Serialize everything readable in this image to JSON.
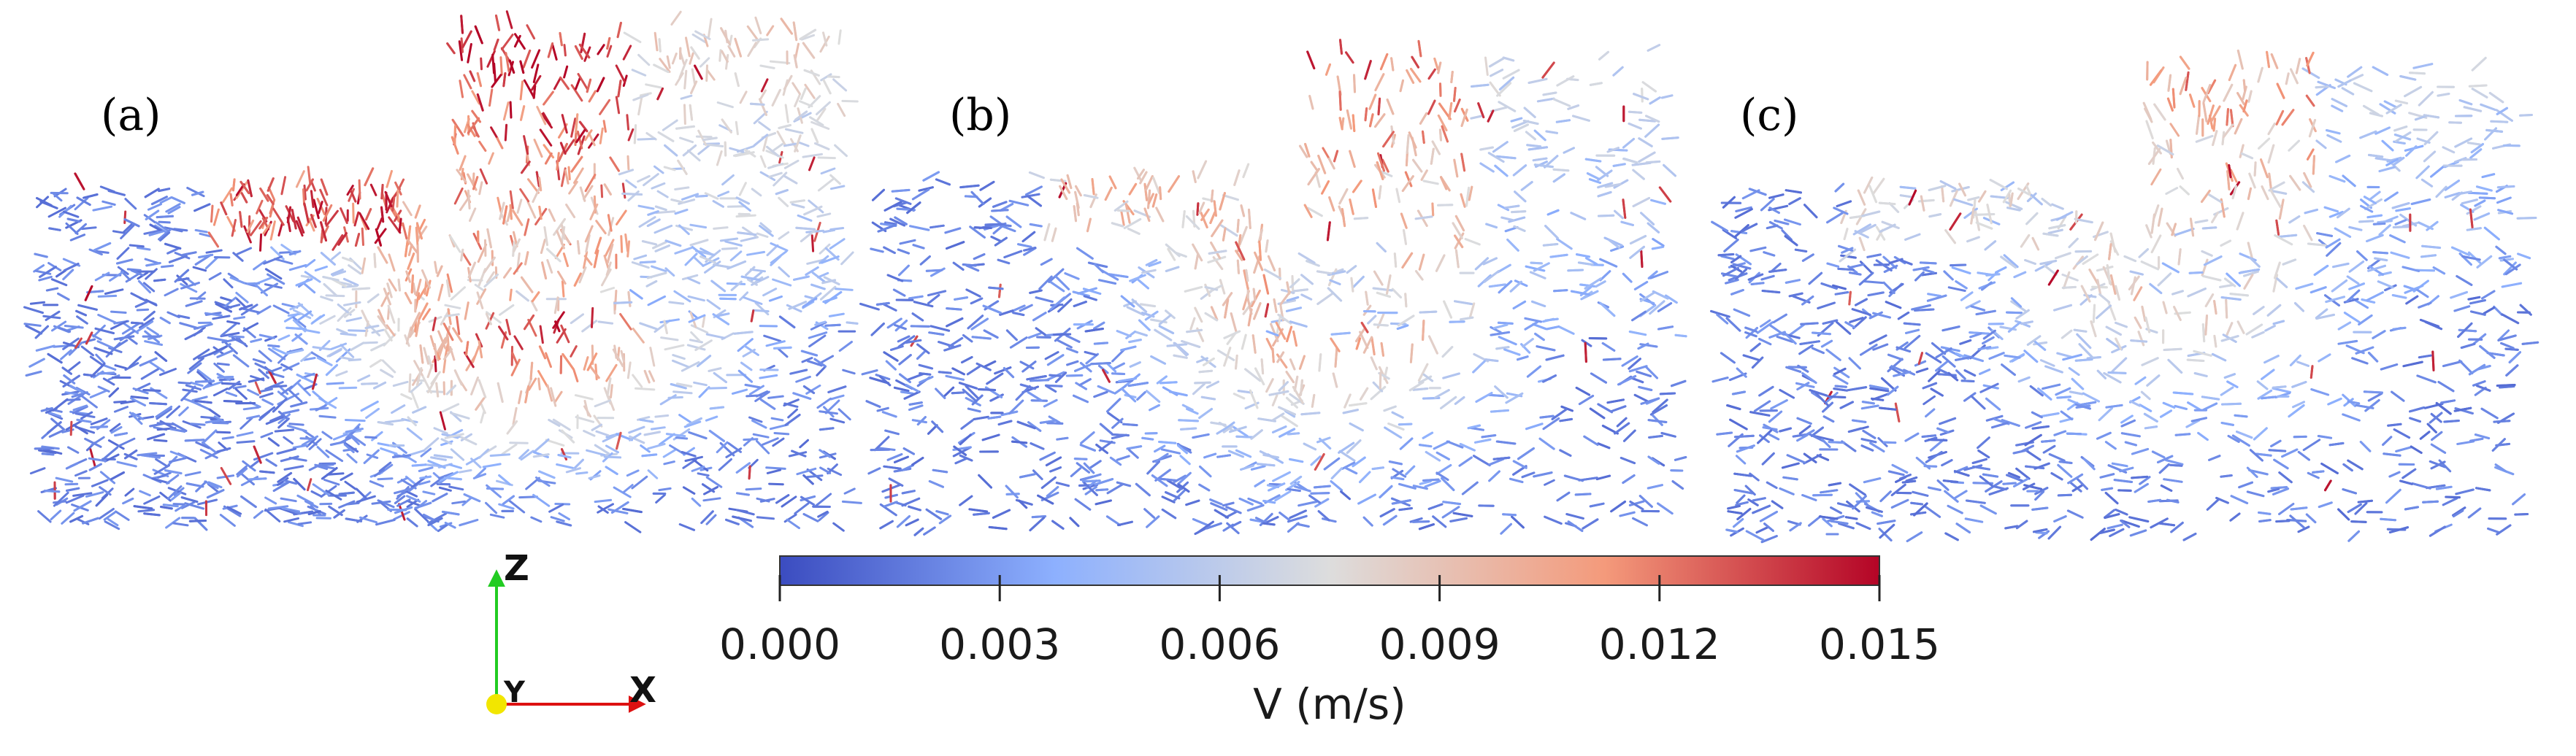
{
  "figure": {
    "panels": [
      {
        "id": "a",
        "label": "(a)",
        "intensity": 1.0
      },
      {
        "id": "b",
        "label": "(b)",
        "intensity": 0.62
      },
      {
        "id": "c",
        "label": "(c)",
        "intensity": 0.42
      }
    ],
    "colorbar": {
      "title": "V (m/s)",
      "min": 0.0,
      "max": 0.015,
      "ticks": [
        "0.000",
        "0.003",
        "0.006",
        "0.009",
        "0.012",
        "0.015"
      ],
      "colormap": [
        "#3b4cc0",
        "#8db0fe",
        "#dddddd",
        "#f49a7b",
        "#b40426"
      ]
    },
    "axes_triad": {
      "up_label": "Z",
      "right_label": "X",
      "origin_label": "Y",
      "up_color": "#22cc22",
      "right_color": "#dd1111",
      "origin_color": "#f2e600"
    }
  }
}
